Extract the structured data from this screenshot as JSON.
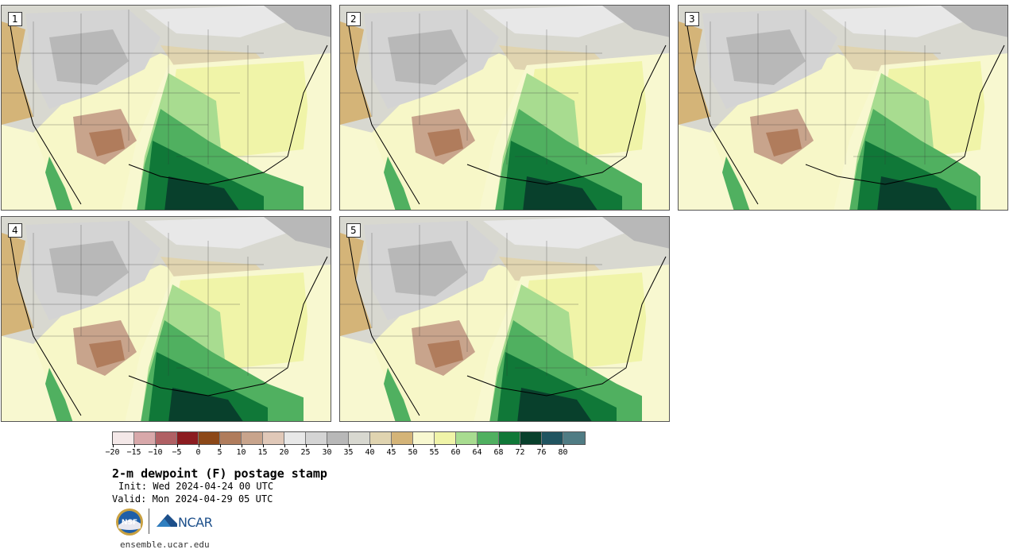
{
  "panels": [
    {
      "label": "1"
    },
    {
      "label": "2"
    },
    {
      "label": "3"
    },
    {
      "label": "4"
    },
    {
      "label": "5"
    }
  ],
  "colorbar": {
    "colors": [
      "#f4e8e8",
      "#d8a8aa",
      "#b06064",
      "#8c1c20",
      "#8c4818",
      "#b07c5c",
      "#c8a48c",
      "#e0c8b8",
      "#e8e8e8",
      "#d4d4d4",
      "#b8b8b8",
      "#d8d8d0",
      "#e0d4b0",
      "#d4b478",
      "#f8f8d0",
      "#f0f4a8",
      "#a8dc90",
      "#50b060",
      "#107838",
      "#08402c",
      "#205460",
      "#507c84"
    ],
    "ticks": [
      "−20",
      "−15",
      "−10",
      "−5",
      "0",
      "5",
      "10",
      "15",
      "20",
      "25",
      "30",
      "35",
      "40",
      "45",
      "50",
      "55",
      "60",
      "64",
      "68",
      "72",
      "76",
      "80"
    ]
  },
  "title": "2-m dewpoint (F) postage stamp",
  "init": "Init: Wed 2024-04-24 00 UTC",
  "valid": "Valid: Mon 2024-04-29 05 UTC",
  "logos": {
    "nsf": "NSF",
    "ncar": "NCAR"
  },
  "site": "ensemble.ucar.edu"
}
